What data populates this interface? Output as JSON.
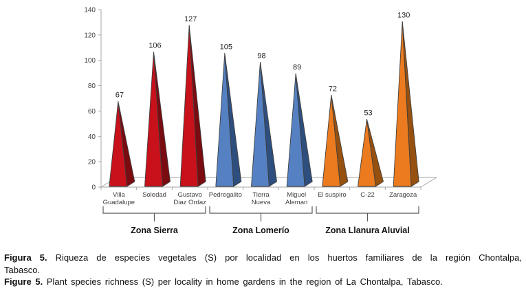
{
  "figure": {
    "caption_es_label": "Figura 5.",
    "caption_es_line1": "Riqueza de especies vegetales (S) por localidad en los huertos familiares de la región Chontalpa,",
    "caption_es_line2": "Tabasco.",
    "caption_en_label": "Figure 5.",
    "caption_en_text": "Plant species richness (S) per locality in home gardens in the region of La Chontalpa, Tabasco."
  },
  "chart_data": {
    "type": "bar",
    "bar_shape": "3d-pyramid-cone",
    "title": "",
    "xlabel": "",
    "ylabel": "",
    "categories": [
      "Villa Guadalupe",
      "Soledad",
      "Gustavo Diaz Ordaz",
      "Pedregalito",
      "Tierra Nueva",
      "Miguel Aleman",
      "El suspiro",
      "C-22",
      "Zaragoza"
    ],
    "category_label_lines": [
      [
        "Villa",
        "Guadalupe"
      ],
      [
        "Soledad"
      ],
      [
        "Gustavo",
        "Diaz Ordaz"
      ],
      [
        "Pedregalito"
      ],
      [
        "Tierra",
        "Nueva"
      ],
      [
        "Miguel",
        "Aleman"
      ],
      [
        "El suspiro"
      ],
      [
        "C-22"
      ],
      [
        "Zaragoza"
      ]
    ],
    "values": [
      67,
      106,
      127,
      105,
      98,
      89,
      72,
      53,
      130
    ],
    "groups": [
      {
        "label": "Zona Sierra",
        "start": 0,
        "end": 2,
        "front_color": "#C8111A",
        "side_color": "#7A0B10"
      },
      {
        "label": "Zona Lomerío",
        "start": 3,
        "end": 5,
        "front_color": "#5581C2",
        "side_color": "#2E4E7E"
      },
      {
        "label": "Zona Llanura Aluvial",
        "start": 6,
        "end": 8,
        "front_color": "#EB7B1E",
        "side_color": "#96500F"
      }
    ],
    "ylim": [
      0,
      140
    ],
    "yticks": [
      0,
      20,
      40,
      60,
      80,
      100,
      120,
      140
    ],
    "grid": false,
    "legend": false,
    "axis_color": "#A6A6A6",
    "tick_label_color": "#404040",
    "value_label_color": "#262626",
    "bracket_color": "#595959",
    "outline_color": "#3F3F3F"
  }
}
